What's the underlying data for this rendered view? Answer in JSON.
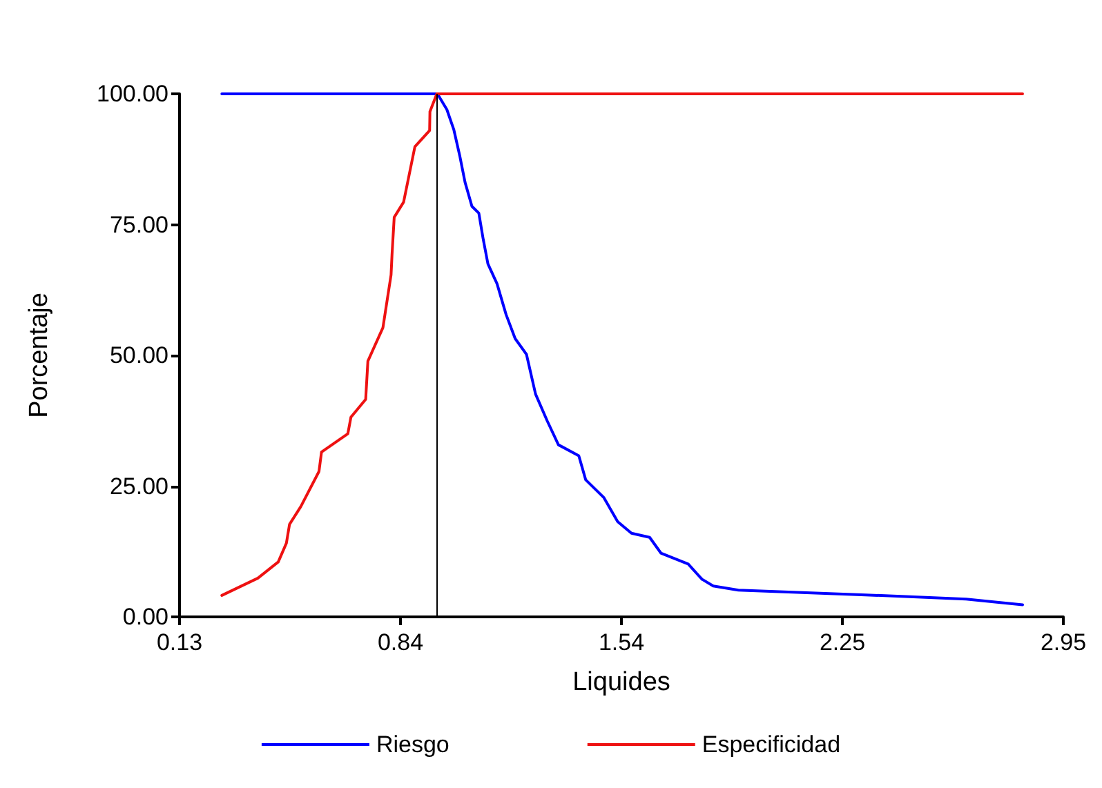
{
  "chart_data": {
    "type": "line",
    "xlabel": "Liquides",
    "ylabel": "Porcentaje",
    "xlim": [
      0.13,
      2.95
    ],
    "xticks": [
      0.13,
      {
        "value": 0.835,
        "label": "0.84"
      },
      1.54,
      {
        "value": 2.245,
        "label": "2.25"
      },
      {
        "value": 2.95,
        "label": "2.95"
      }
    ],
    "ylim": [
      0,
      100
    ],
    "yticks": [
      {
        "value": 0,
        "label": "0.00"
      },
      {
        "value": 25,
        "label": "25.00"
      },
      {
        "value": 50,
        "label": "50.00"
      },
      {
        "value": 75,
        "label": "75.00"
      },
      {
        "value": 100,
        "label": "100.00"
      }
    ],
    "grid": false,
    "legend": "bottom",
    "marker": "none",
    "line_style": "solid",
    "ref_lines": [
      {
        "axis": "x",
        "value": 0.95,
        "color": "#000000"
      }
    ],
    "series": [
      {
        "name": "Riesgo",
        "color": "#0000ff",
        "x": [
          0.265,
          0.953,
          0.983,
          1.005,
          1.024,
          1.041,
          1.063,
          1.085,
          1.099,
          1.114,
          1.143,
          1.172,
          1.201,
          1.237,
          1.266,
          1.303,
          1.339,
          1.404,
          1.426,
          1.484,
          1.528,
          1.572,
          1.63,
          1.666,
          1.753,
          1.797,
          1.833,
          1.913,
          2.32,
          2.64,
          2.82
        ],
        "values": [
          100,
          100,
          97,
          93.2,
          88.2,
          83.1,
          78.5,
          77.2,
          72.2,
          67.5,
          63.7,
          57.8,
          53.2,
          50.2,
          42.6,
          37.5,
          32.9,
          30.8,
          26.2,
          22.8,
          18.2,
          16,
          15.2,
          12.2,
          10.1,
          7.2,
          5.9,
          5.1,
          4.2,
          3.4,
          2.3
        ]
      },
      {
        "name": "Especificidad",
        "color": "#ee1111",
        "x": [
          0.265,
          0.38,
          0.445,
          0.471,
          0.481,
          0.517,
          0.575,
          0.583,
          0.667,
          0.677,
          0.724,
          0.731,
          0.779,
          0.805,
          0.808,
          0.815,
          0.845,
          0.881,
          0.928,
          0.929,
          0.951,
          2.82
        ],
        "values": [
          4.1,
          7.4,
          10.5,
          14.1,
          17.7,
          21.1,
          27.8,
          31.5,
          35,
          38.2,
          41.6,
          48.9,
          55.3,
          65.4,
          69.2,
          76.4,
          79.3,
          89.9,
          93,
          96.6,
          100,
          100
        ]
      }
    ]
  }
}
